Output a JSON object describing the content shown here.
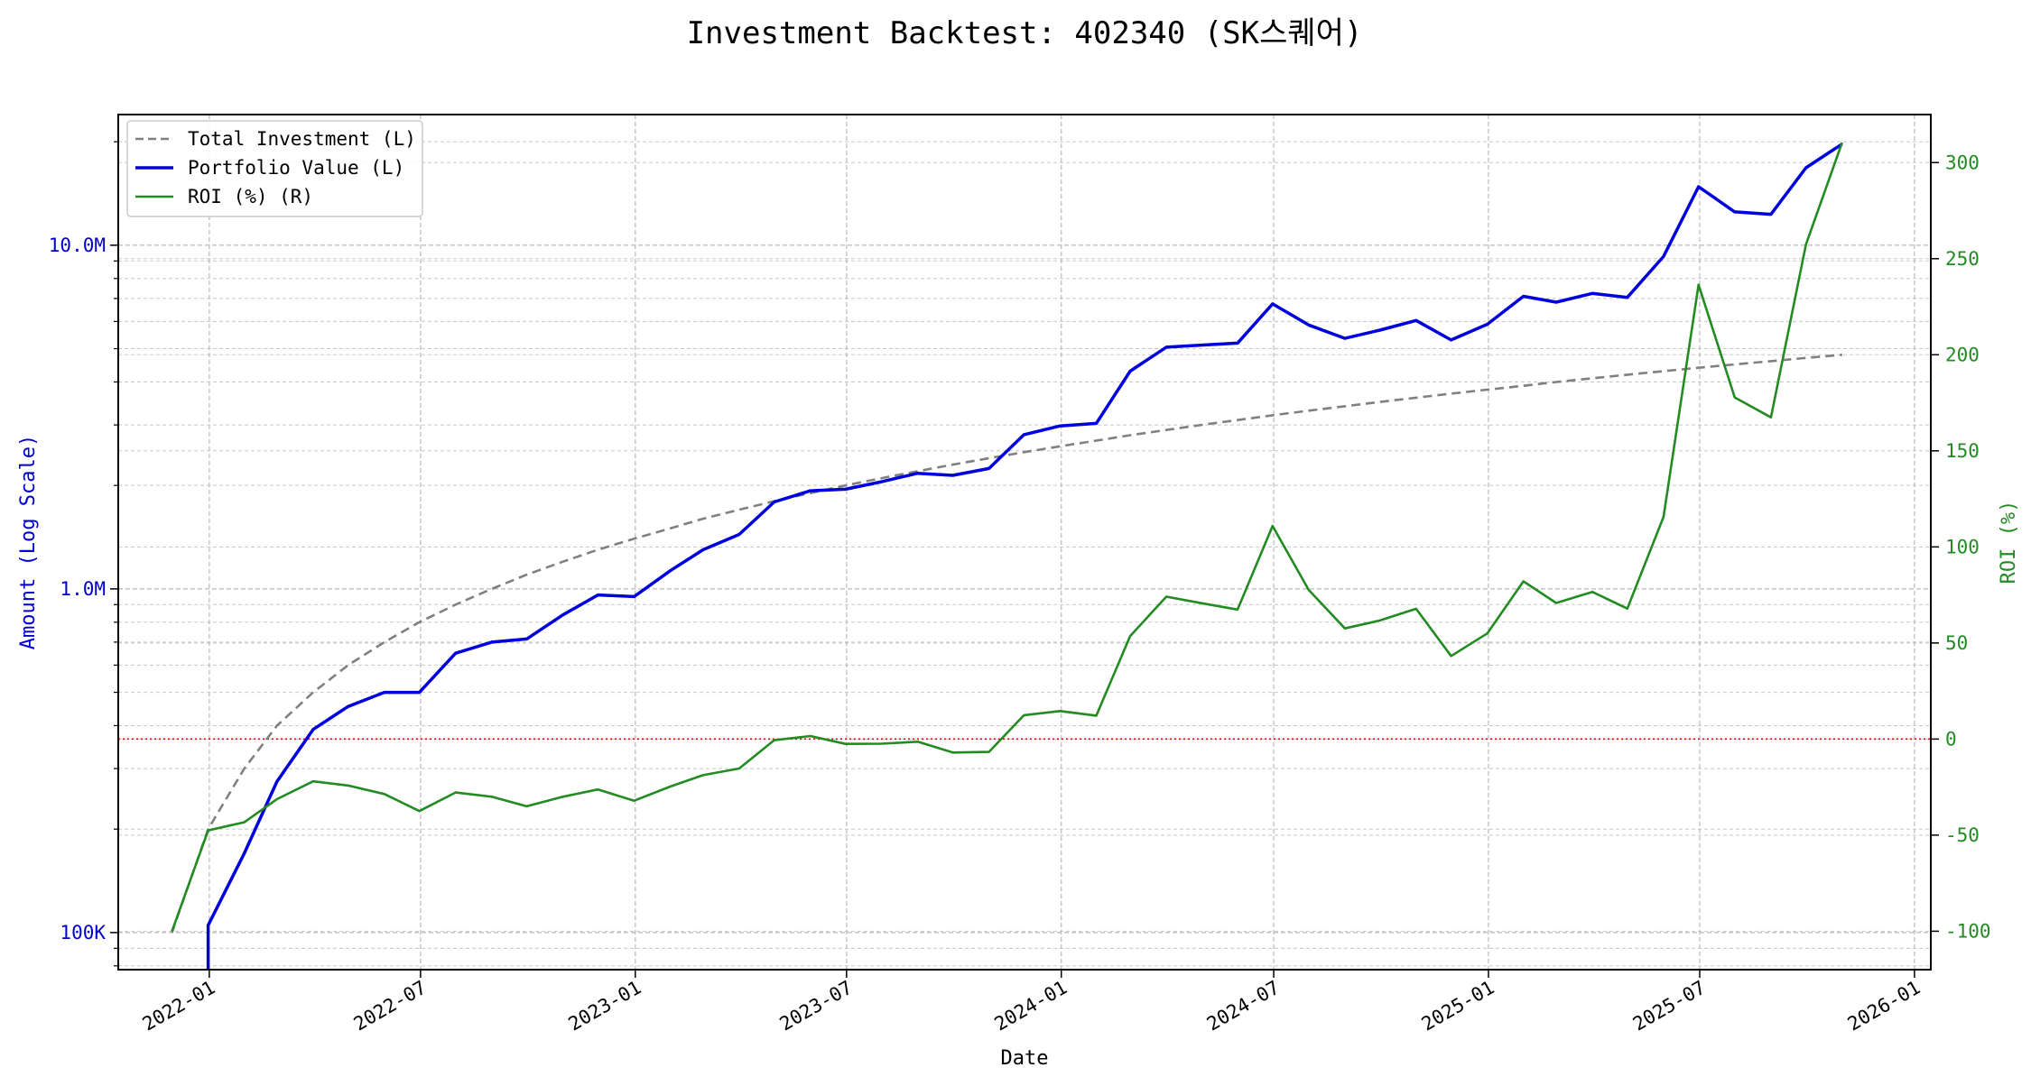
{
  "chart_data": {
    "type": "line",
    "title": "Investment Backtest: 402340 (SK스퀘어)",
    "xlabel": "Date",
    "ylabel_left": "Amount (Log Scale)",
    "ylabel_right": "ROI (%)",
    "y_left_scale": "log",
    "y_left_ticks": [
      {
        "value": 100000,
        "label": "100K"
      },
      {
        "value": 1000000,
        "label": "1.0M"
      },
      {
        "value": 10000000,
        "label": "10.0M"
      }
    ],
    "y_right_ticks": [
      -100,
      -50,
      0,
      50,
      100,
      150,
      200,
      250,
      300
    ],
    "x_ticks": [
      "2022-01",
      "2022-07",
      "2023-01",
      "2023-07",
      "2024-01",
      "2024-07",
      "2025-01",
      "2025-07",
      "2026-01"
    ],
    "ylim_left": [
      78000,
      24000000
    ],
    "ylim_right": [
      -120,
      325
    ],
    "xlim": [
      "2021-10-15",
      "2026-01-15"
    ],
    "grid": true,
    "legend_position": "top-left",
    "zero_line_color": "#ff0000",
    "dates": [
      "2021-11-30",
      "2021-12-31",
      "2022-01-31",
      "2022-02-28",
      "2022-03-31",
      "2022-04-30",
      "2022-05-31",
      "2022-06-30",
      "2022-07-31",
      "2022-08-31",
      "2022-09-30",
      "2022-10-31",
      "2022-11-30",
      "2022-12-31",
      "2023-01-31",
      "2023-02-28",
      "2023-03-31",
      "2023-04-30",
      "2023-05-31",
      "2023-06-30",
      "2023-07-31",
      "2023-08-31",
      "2023-09-30",
      "2023-10-31",
      "2023-11-30",
      "2023-12-31",
      "2024-01-31",
      "2024-02-29",
      "2024-03-31",
      "2024-04-30",
      "2024-05-31",
      "2024-06-30",
      "2024-07-31",
      "2024-08-31",
      "2024-09-30",
      "2024-10-31",
      "2024-11-30",
      "2024-12-31",
      "2025-01-31",
      "2025-02-28",
      "2025-03-31",
      "2025-04-30",
      "2025-05-31",
      "2025-06-30",
      "2025-07-31",
      "2025-08-31",
      "2025-09-30",
      "2025-10-31"
    ],
    "series": [
      {
        "name": "Total Investment (L)",
        "axis": "left",
        "color": "#808080",
        "style": "dashed",
        "values": [
          100000,
          200000,
          300000,
          400000,
          500000,
          600000,
          700000,
          800000,
          900000,
          1000000,
          1100000,
          1200000,
          1300000,
          1400000,
          1500000,
          1600000,
          1700000,
          1800000,
          1900000,
          2000000,
          2100000,
          2200000,
          2300000,
          2400000,
          2500000,
          2600000,
          2700000,
          2800000,
          2900000,
          3000000,
          3100000,
          3200000,
          3300000,
          3400000,
          3500000,
          3600000,
          3700000,
          3800000,
          3900000,
          4000000,
          4100000,
          4200000,
          4300000,
          4400000,
          4500000,
          4600000,
          4700000,
          4800000
        ]
      },
      {
        "name": "Portfolio Value (L)",
        "axis": "left",
        "color": "#0000dd",
        "style": "solid",
        "values": [
          null,
          105000,
          170000,
          275000,
          390000,
          455000,
          500000,
          500000,
          650000,
          700000,
          715000,
          840000,
          960000,
          950000,
          1130000,
          1300000,
          1440000,
          1790000,
          1930000,
          1950000,
          2050000,
          2170000,
          2140000,
          2240000,
          2810000,
          2980000,
          3030000,
          4300000,
          5050000,
          5120000,
          5190000,
          6750000,
          5860000,
          5360000,
          5660000,
          6040000,
          5300000,
          5890000,
          7100000,
          6830000,
          7240000,
          7050000,
          9270000,
          14800000,
          12500000,
          12300000,
          16800000,
          19700000
        ]
      },
      {
        "name": "ROI (%) (R)",
        "axis": "right",
        "color": "#228B22",
        "style": "solid",
        "values": [
          -100,
          -47.5,
          -43.3,
          -31.3,
          -22,
          -24.2,
          -28.6,
          -37.5,
          -27.8,
          -30,
          -35,
          -30,
          -26.2,
          -32.1,
          -24.7,
          -18.8,
          -15.3,
          -0.6,
          1.6,
          -2.5,
          -2.4,
          -1.4,
          -7,
          -6.7,
          12.4,
          14.6,
          12.2,
          53.6,
          74.1,
          70.7,
          67.4,
          110.9,
          77.6,
          57.6,
          61.7,
          67.8,
          43.2,
          55,
          82.1,
          70.8,
          76.6,
          67.9,
          115.6,
          236.4,
          177.8,
          167.4,
          257.4,
          310.4
        ]
      }
    ]
  }
}
